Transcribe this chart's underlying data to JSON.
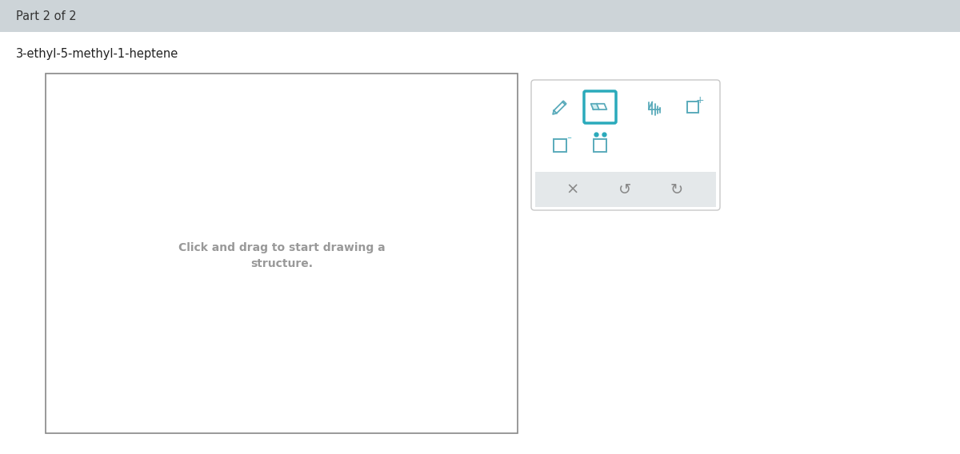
{
  "main_bg": "#ffffff",
  "header_bg": "#cdd4d8",
  "header_text": "Part 2 of 2",
  "header_fontsize": 10.5,
  "header_text_color": "#333333",
  "title_text": "3-ethyl-5-methyl-1-heptene",
  "title_fontsize": 10.5,
  "title_color": "#222222",
  "drawing_text_line1": "Click and drag to start drawing a",
  "drawing_text_line2": "structure.",
  "drawing_text_fontsize": 10,
  "drawing_text_color": "#999999",
  "toolbar_bg": "#ffffff",
  "toolbar_border": "#c8c8c8",
  "teal_color": "#2aaabb",
  "icon_color": "#5aabbb",
  "bottom_bar_bg": "#e4e8ea",
  "icon_gray": "#888888"
}
